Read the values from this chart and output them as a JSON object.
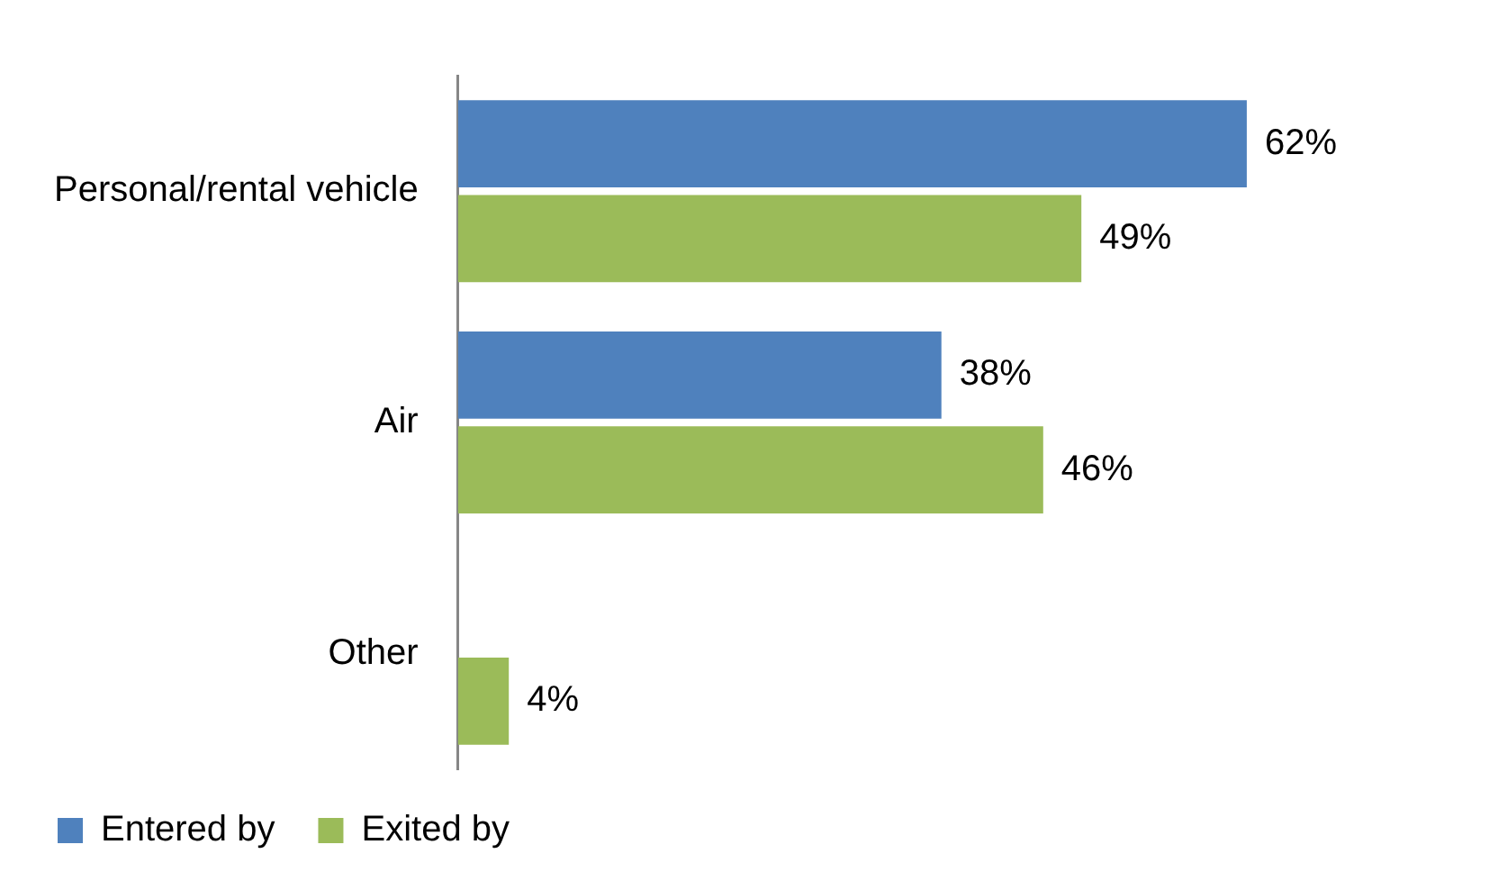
{
  "chart_data": {
    "type": "bar",
    "orientation": "horizontal",
    "categories": [
      "Personal/rental vehicle",
      "Air",
      "Other"
    ],
    "series": [
      {
        "name": "Entered by",
        "color": "#4f81bd",
        "values": [
          62,
          38,
          null
        ],
        "value_labels": [
          "62%",
          "38%",
          null
        ]
      },
      {
        "name": "Exited by",
        "color": "#9bbb59",
        "values": [
          49,
          46,
          4
        ],
        "value_labels": [
          "49%",
          "46%",
          "4%"
        ]
      }
    ],
    "tick_labels": "y",
    "legend": "bottom left"
  }
}
